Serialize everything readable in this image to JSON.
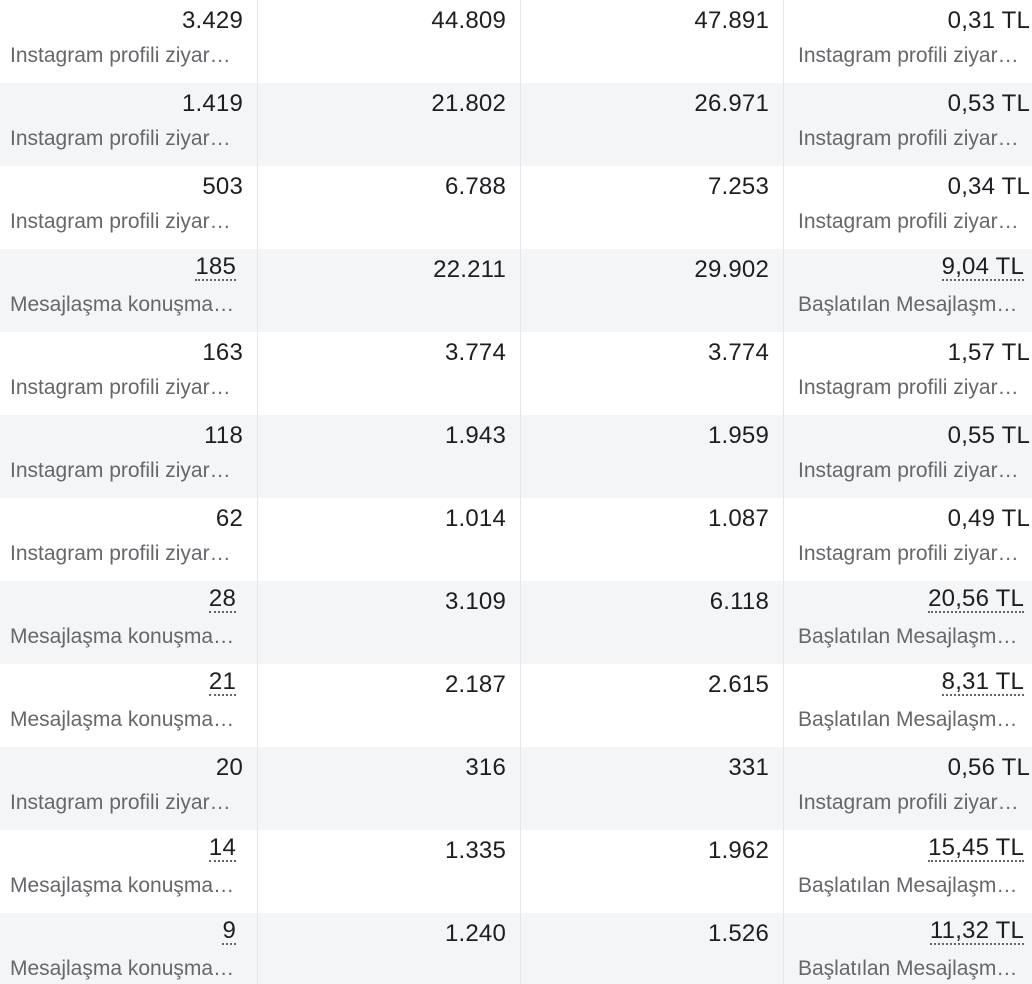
{
  "rows": [
    {
      "results": "3.429",
      "results_type": "Instagram profili ziyaretleri",
      "results_dotted": false,
      "reach": "44.809",
      "impressions": "47.891",
      "cost": "0,31 TL",
      "cost_type": "Instagram profili ziyareti başına maliyet",
      "cost_dotted": false
    },
    {
      "results": "1.419",
      "results_type": "Instagram profili ziyaretleri",
      "results_dotted": false,
      "reach": "21.802",
      "impressions": "26.971",
      "cost": "0,53 TL",
      "cost_type": "Instagram profili ziyareti başına maliyet",
      "cost_dotted": false
    },
    {
      "results": "503",
      "results_type": "Instagram profili ziyaretleri",
      "results_dotted": false,
      "reach": "6.788",
      "impressions": "7.253",
      "cost": "0,34 TL",
      "cost_type": "Instagram profili ziyareti başına maliyet",
      "cost_dotted": false
    },
    {
      "results": "185",
      "results_type": "Mesajlaşma konuşmaları başlatıldı",
      "results_dotted": true,
      "reach": "22.211",
      "impressions": "29.902",
      "cost": "9,04 TL",
      "cost_type": "Başlatılan Mesajlaşma konuşması başına maliyet",
      "cost_dotted": true
    },
    {
      "results": "163",
      "results_type": "Instagram profili ziyaretleri",
      "results_dotted": false,
      "reach": "3.774",
      "impressions": "3.774",
      "cost": "1,57 TL",
      "cost_type": "Instagram profili ziyareti başına maliyet",
      "cost_dotted": false
    },
    {
      "results": "118",
      "results_type": "Instagram profili ziyaretleri",
      "results_dotted": false,
      "reach": "1.943",
      "impressions": "1.959",
      "cost": "0,55 TL",
      "cost_type": "Instagram profili ziyareti başına maliyet",
      "cost_dotted": false
    },
    {
      "results": "62",
      "results_type": "Instagram profili ziyaretleri",
      "results_dotted": false,
      "reach": "1.014",
      "impressions": "1.087",
      "cost": "0,49 TL",
      "cost_type": "Instagram profili ziyareti başına maliyet",
      "cost_dotted": false
    },
    {
      "results": "28",
      "results_type": "Mesajlaşma konuşmaları başlatıldı",
      "results_dotted": true,
      "reach": "3.109",
      "impressions": "6.118",
      "cost": "20,56 TL",
      "cost_type": "Başlatılan Mesajlaşma konuşması başına maliyet",
      "cost_dotted": true
    },
    {
      "results": "21",
      "results_type": "Mesajlaşma konuşmaları başlatıldı",
      "results_dotted": true,
      "reach": "2.187",
      "impressions": "2.615",
      "cost": "8,31 TL",
      "cost_type": "Başlatılan Mesajlaşma konuşması başına maliyet",
      "cost_dotted": true
    },
    {
      "results": "20",
      "results_type": "Instagram profili ziyaretleri",
      "results_dotted": false,
      "reach": "316",
      "impressions": "331",
      "cost": "0,56 TL",
      "cost_type": "Instagram profili ziyareti başına maliyet",
      "cost_dotted": false
    },
    {
      "results": "14",
      "results_type": "Mesajlaşma konuşmaları başlatıldı",
      "results_dotted": true,
      "reach": "1.335",
      "impressions": "1.962",
      "cost": "15,45 TL",
      "cost_type": "Başlatılan Mesajlaşma konuşması başına maliyet",
      "cost_dotted": true
    },
    {
      "results": "9",
      "results_type": "Mesajlaşma konuşmaları başlatıldı",
      "results_dotted": true,
      "reach": "1.240",
      "impressions": "1.526",
      "cost": "11,32 TL",
      "cost_type": "Başlatılan Mesajlaşma konuşması başına maliyet",
      "cost_dotted": true
    }
  ]
}
